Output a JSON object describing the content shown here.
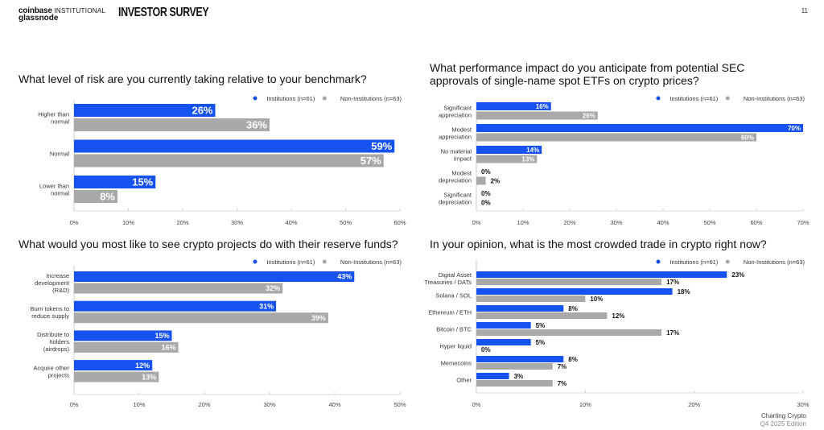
{
  "header": {
    "brand_coinbase": "coinbase",
    "brand_institutional": "INSTITUTIONAL",
    "brand_glassnode": "glassnode",
    "survey": "INVESTOR SURVEY",
    "page_number": "11"
  },
  "footer": {
    "line1": "Charting Crypto",
    "line2": "Q4 2025 Edition"
  },
  "colors": {
    "institutions": "#1652f0",
    "non_institutions": "#a9a9a9"
  },
  "chart_data": [
    {
      "type": "bar",
      "orientation": "horizontal",
      "title": "What level of risk are you currently taking relative to your benchmark?",
      "categories": [
        [
          "Higher than",
          "normal"
        ],
        [
          "Normal"
        ],
        [
          "Lower than",
          "normal"
        ]
      ],
      "series": [
        {
          "name": "Institutions (n=61)",
          "values": [
            26,
            59,
            15
          ]
        },
        {
          "name": "Non-Institutions (n=63)",
          "values": [
            36,
            57,
            8
          ]
        }
      ],
      "xlim": [
        0,
        60
      ],
      "xticks": [
        0,
        10,
        20,
        30,
        40,
        50,
        60
      ],
      "tick_suffix": "%",
      "legend": "top-right",
      "grid": false
    },
    {
      "type": "bar",
      "orientation": "horizontal",
      "title": [
        "What performance impact do you anticipate from potential SEC",
        "approvals of single-name spot ETFs on crypto prices?"
      ],
      "categories": [
        [
          "Significant",
          "appreciation"
        ],
        [
          "Modest",
          "appreciation"
        ],
        [
          "No material",
          "impact"
        ],
        [
          "Modest",
          "depreciation"
        ],
        [
          "Significant",
          "depreciation"
        ]
      ],
      "series": [
        {
          "name": "Institutions (n=61)",
          "values": [
            16,
            70,
            14,
            0,
            0
          ]
        },
        {
          "name": "Non-Institutions (n=63)",
          "values": [
            26,
            60,
            13,
            2,
            0
          ]
        }
      ],
      "xlim": [
        0,
        70
      ],
      "xticks": [
        0,
        10,
        20,
        30,
        40,
        50,
        60,
        70
      ],
      "tick_suffix": "%",
      "legend": "top-right",
      "grid": false
    },
    {
      "type": "bar",
      "orientation": "horizontal",
      "title": "What would you most like to see crypto projects do with their reserve funds?",
      "categories": [
        [
          "Increase",
          "development",
          "(R&D)"
        ],
        [
          "Burn tokens to",
          "reduce supply"
        ],
        [
          "Distribute to",
          "holders",
          "(airdrops)"
        ],
        [
          "Acquire other",
          "projects"
        ]
      ],
      "series": [
        {
          "name": "Institutions (n=61)",
          "values": [
            43,
            31,
            15,
            12
          ]
        },
        {
          "name": "Non-Institutions (n=63)",
          "values": [
            32,
            39,
            16,
            13
          ]
        }
      ],
      "xlim": [
        0,
        50
      ],
      "xticks": [
        0,
        10,
        20,
        30,
        40,
        50
      ],
      "tick_suffix": "%",
      "legend": "top-right",
      "grid": false
    },
    {
      "type": "bar",
      "orientation": "horizontal",
      "title": "In your opinion, what is the most crowded trade in crypto right now?",
      "categories": [
        [
          "Digital Asset",
          "Treasuries / DATs"
        ],
        [
          "Solana / SOL"
        ],
        [
          "Ethereum / ETH"
        ],
        [
          "Bitcoin / BTC"
        ],
        [
          "Hyper liquid"
        ],
        [
          "Memecoins"
        ],
        [
          "Other"
        ]
      ],
      "series": [
        {
          "name": "Institutions (n=61)",
          "values": [
            23,
            18,
            8,
            5,
            5,
            8,
            3
          ]
        },
        {
          "name": "Non-Institutions (n=63)",
          "values": [
            17,
            10,
            12,
            17,
            0,
            7,
            7
          ]
        }
      ],
      "xlim": [
        0,
        30
      ],
      "xticks": [
        0,
        10,
        20,
        30
      ],
      "tick_suffix": "%",
      "legend": "top-right",
      "grid": false
    }
  ]
}
